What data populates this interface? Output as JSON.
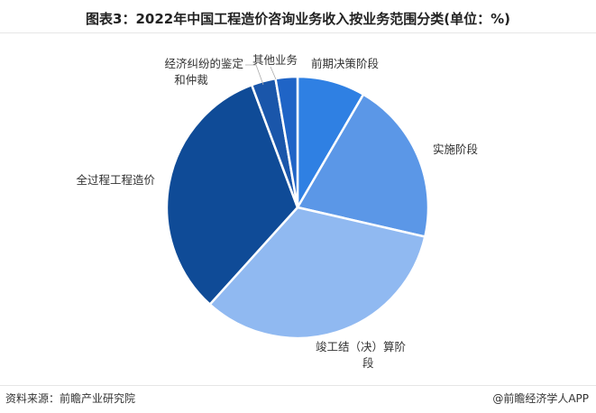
{
  "chart_data": {
    "type": "pie",
    "title": "图表3：2022年中国工程造价咨询业务收入按业务范围分类(单位：%)",
    "slices": [
      {
        "label": "前期决策阶段",
        "value": 8.4,
        "color": "#2f80e3"
      },
      {
        "label": "实施阶段",
        "value": 20.2,
        "color": "#5b97e7"
      },
      {
        "label": "竣工结（决）算阶段",
        "value": 33.1,
        "color": "#90b9f1"
      },
      {
        "label": "全过程工程造价",
        "value": 32.6,
        "color": "#0f4b97"
      },
      {
        "label": "经济纠纷的鉴定和仲裁",
        "value": 3.0,
        "color": "#1a56aa"
      },
      {
        "label": "其他业务",
        "value": 2.7,
        "color": "#1f64c6"
      }
    ],
    "start": "12 o'clock, clockwise"
  },
  "footer": {
    "source": "资料来源：前瞻产业研究院",
    "brand": "@前瞻经济学人APP"
  }
}
